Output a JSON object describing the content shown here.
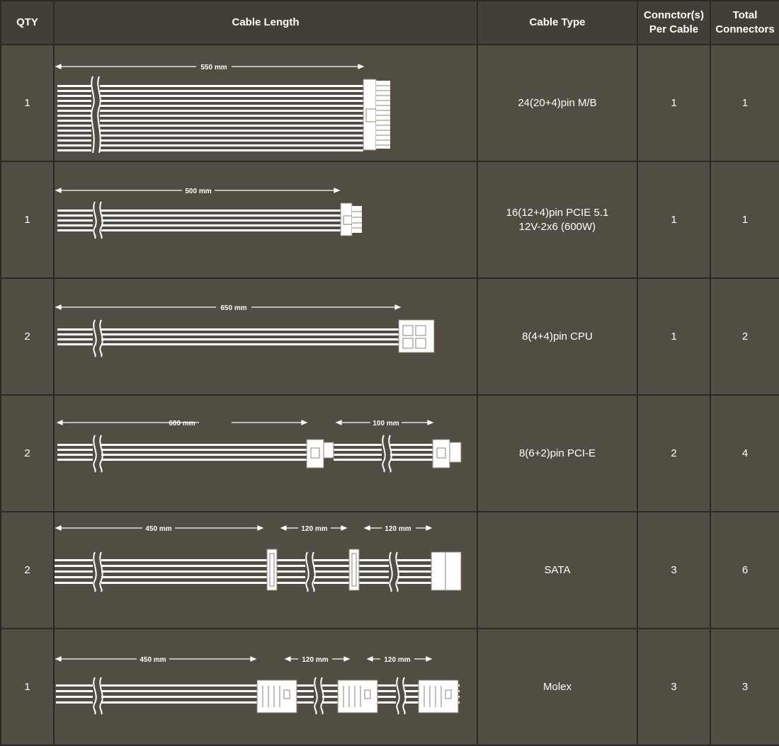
{
  "header": {
    "qty": "QTY",
    "cable_length": "Cable Length",
    "cable_type": "Cable Type",
    "connectors_per_cable": [
      "Connctor(s)",
      "Per Cable"
    ],
    "total_connectors": [
      "Total",
      "Connectors"
    ]
  },
  "rows": [
    {
      "qty": "1",
      "lengths": [
        "550 mm"
      ],
      "type": [
        "24(20+4)pin M/B"
      ],
      "per_cable": "1",
      "total": "1"
    },
    {
      "qty": "1",
      "lengths": [
        "500 mm"
      ],
      "type": [
        "16(12+4)pin PCIE 5.1",
        "12V-2x6 (600W)"
      ],
      "per_cable": "1",
      "total": "1"
    },
    {
      "qty": "2",
      "lengths": [
        "650 mm"
      ],
      "type": [
        "8(4+4)pin CPU"
      ],
      "per_cable": "1",
      "total": "2"
    },
    {
      "qty": "2",
      "lengths": [
        "600 mm",
        "100 mm"
      ],
      "type": [
        "8(6+2)pin PCI-E"
      ],
      "per_cable": "2",
      "total": "4"
    },
    {
      "qty": "2",
      "lengths": [
        "450 mm",
        "120 mm",
        "120 mm"
      ],
      "type": [
        "SATA"
      ],
      "per_cable": "3",
      "total": "6"
    },
    {
      "qty": "1",
      "lengths": [
        "450 mm",
        "120 mm",
        "120 mm"
      ],
      "type": [
        "Molex"
      ],
      "per_cable": "3",
      "total": "3"
    }
  ],
  "colors": {
    "header_bg": "#433f37",
    "cell_bg": "#524d42",
    "grid": "#2a2826",
    "text": "#ffffff"
  }
}
